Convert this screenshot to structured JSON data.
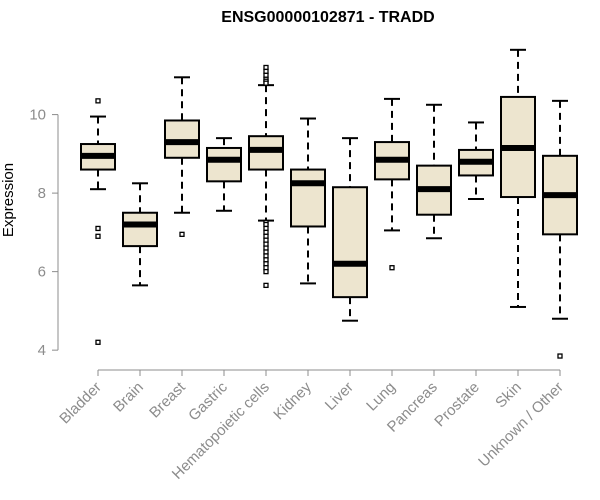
{
  "chart_data": {
    "type": "boxplot",
    "title": "ENSG00000102871 - TRADD",
    "xlabel": "",
    "ylabel": "Expression",
    "ylim": [
      3.8,
      11.9
    ],
    "yticks": [
      4,
      6,
      8,
      10
    ],
    "categories": [
      "Bladder",
      "Brain",
      "Breast",
      "Gastric",
      "Hematopoietic cells",
      "Kidney",
      "Liver",
      "Lung",
      "Pancreas",
      "Prostate",
      "Skin",
      "Unknown / Other"
    ],
    "boxes": [
      {
        "whisker_low": 8.1,
        "q1": 8.6,
        "median": 8.95,
        "q3": 9.25,
        "whisker_high": 9.95,
        "outliers": [
          10.35,
          7.1,
          6.9,
          4.2
        ]
      },
      {
        "whisker_low": 5.65,
        "q1": 6.65,
        "median": 7.2,
        "q3": 7.5,
        "whisker_high": 8.25,
        "outliers": []
      },
      {
        "whisker_low": 7.5,
        "q1": 8.9,
        "median": 9.3,
        "q3": 9.85,
        "whisker_high": 10.95,
        "outliers": [
          6.95
        ]
      },
      {
        "whisker_low": 7.55,
        "q1": 8.3,
        "median": 8.85,
        "q3": 9.15,
        "whisker_high": 9.4,
        "outliers": []
      },
      {
        "whisker_low": 7.3,
        "q1": 8.6,
        "median": 9.1,
        "q3": 9.45,
        "whisker_high": 10.75,
        "outliers": [
          11.2,
          11.1,
          11.0,
          10.9,
          10.85,
          10.8,
          7.25,
          7.2,
          7.1,
          7.0,
          6.9,
          6.8,
          6.7,
          6.6,
          6.5,
          6.4,
          6.3,
          6.2,
          6.1,
          6.0,
          5.65
        ]
      },
      {
        "whisker_low": 5.7,
        "q1": 7.15,
        "median": 8.25,
        "q3": 8.6,
        "whisker_high": 9.9,
        "outliers": []
      },
      {
        "whisker_low": 4.75,
        "q1": 5.35,
        "median": 6.2,
        "q3": 8.15,
        "whisker_high": 9.4,
        "outliers": []
      },
      {
        "whisker_low": 7.05,
        "q1": 8.35,
        "median": 8.85,
        "q3": 9.3,
        "whisker_high": 10.4,
        "outliers": [
          6.1
        ]
      },
      {
        "whisker_low": 6.85,
        "q1": 7.45,
        "median": 8.1,
        "q3": 8.7,
        "whisker_high": 10.25,
        "outliers": []
      },
      {
        "whisker_low": 7.85,
        "q1": 8.45,
        "median": 8.8,
        "q3": 9.1,
        "whisker_high": 9.8,
        "outliers": []
      },
      {
        "whisker_low": 5.1,
        "q1": 7.9,
        "median": 9.15,
        "q3": 10.45,
        "whisker_high": 11.65,
        "outliers": []
      },
      {
        "whisker_low": 4.8,
        "q1": 6.95,
        "median": 7.95,
        "q3": 8.95,
        "whisker_high": 10.35,
        "outliers": [
          3.85
        ]
      }
    ],
    "colors": {
      "box_fill": "#ede5cf",
      "line": "#000000",
      "axis": "#8c8c8c",
      "label": "#8c8c8c"
    }
  }
}
